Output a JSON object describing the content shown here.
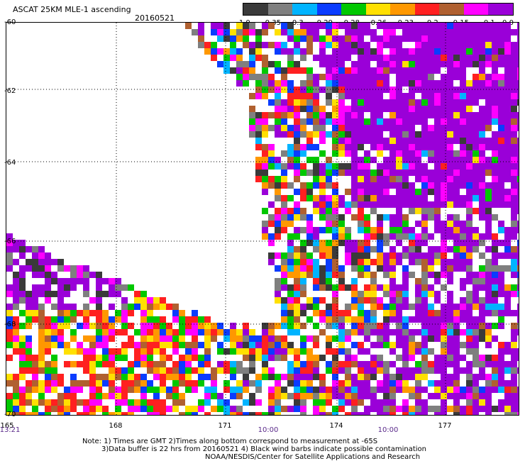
{
  "header": {
    "title": "ASCAT 25KM MLE-1 ascending",
    "date": "20160521"
  },
  "colorbar": {
    "labels": [
      "-1.0",
      "-0.35",
      "-0.3",
      "-0.29",
      "-0.28",
      "-0.26",
      "-0.23",
      "-0.2",
      "-0.15",
      "-0.1",
      "0.0"
    ],
    "colors": [
      "#3a3a3a",
      "#7f7f7f",
      "#00b4ff",
      "#0a3cff",
      "#00c800",
      "#ffe000",
      "#ff9800",
      "#ff2020",
      "#b06030",
      "#ff00ff",
      "#9a00d8"
    ]
  },
  "axes": {
    "lat_labels": [
      "-60",
      "-62",
      "-64",
      "-66",
      "-68",
      "-70"
    ],
    "lon_labels": [
      "165",
      "168",
      "171",
      "174",
      "177"
    ],
    "time_labels": [
      "13:21",
      "10:00",
      "10:00"
    ]
  },
  "notes": {
    "line1": "Note: 1) Times are GMT 2)Times along bottom correspond to measurement at -65S",
    "line2": "3)Data buffer is 22 hrs from 20160521 4) Black wind barbs indicate possible contamination",
    "line3": "NOAA/NESDIS/Center for Satellite Applications and Research"
  }
}
